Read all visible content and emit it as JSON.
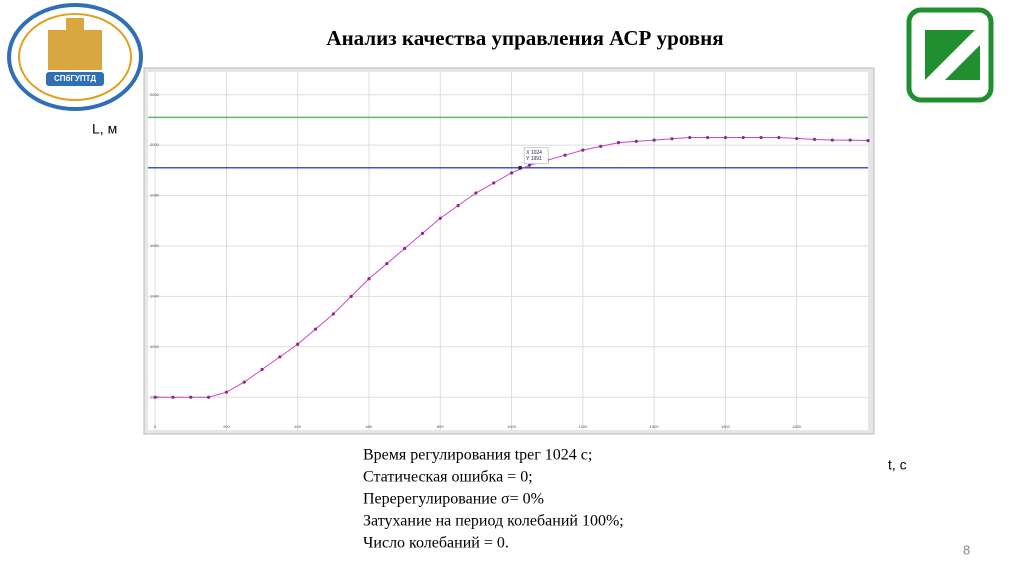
{
  "slide": {
    "title": "Анализ качества управления АСР уровня",
    "logo_text": "СПбГУПТД",
    "y_label": "L, м",
    "x_label": "t, с",
    "notes": [
      "Время регулирования tрег 1024 с;",
      "Статическая ошибка = 0;",
      "Перерегулирование  σ= 0%",
      "Затухание на период колебаний 100%;",
      "Число колебаний = 0."
    ],
    "page": "8"
  },
  "chart_data": {
    "type": "line",
    "x": [
      0,
      50,
      100,
      150,
      200,
      250,
      300,
      350,
      400,
      450,
      500,
      550,
      600,
      650,
      700,
      750,
      800,
      850,
      900,
      950,
      1000,
      1050,
      1100,
      1150,
      1200,
      1250,
      1300,
      1350,
      1400,
      1450,
      1500,
      1550,
      1600,
      1650,
      1700,
      1750,
      1800,
      1850,
      1900,
      1950,
      2000
    ],
    "series": [
      {
        "color": "#cc44cc",
        "values": [
          1900,
          1900,
          1900,
          1900,
          1902,
          1906,
          1911,
          1916,
          1921,
          1927,
          1933,
          1940,
          1947,
          1953,
          1959,
          1965,
          1971,
          1976,
          1981,
          1985,
          1989,
          1992,
          1994,
          1996,
          1998,
          1999.5,
          2001,
          2001.5,
          2002,
          2002.5,
          2003,
          2003,
          2003,
          2003,
          2003,
          2003,
          2002.6,
          2002.3,
          2002,
          2002,
          2001.8
        ]
      }
    ],
    "reference_lines": [
      {
        "value": 2011,
        "color": "#6ab46a"
      },
      {
        "value": 1991,
        "color": "#4455cc"
      }
    ],
    "datatip": {
      "x": 1024,
      "y": 1991,
      "x_label": "X 1024",
      "y_label": "Y 1991"
    },
    "xlim": [
      -20,
      2000
    ],
    "ylim": [
      1887,
      2029
    ],
    "xticks": [
      0,
      200,
      400,
      600,
      800,
      1000,
      1200,
      1400,
      1600,
      1800
    ],
    "yticks": [
      1900,
      1920,
      1940,
      1960,
      1980,
      2000,
      2020
    ],
    "grid": true
  }
}
